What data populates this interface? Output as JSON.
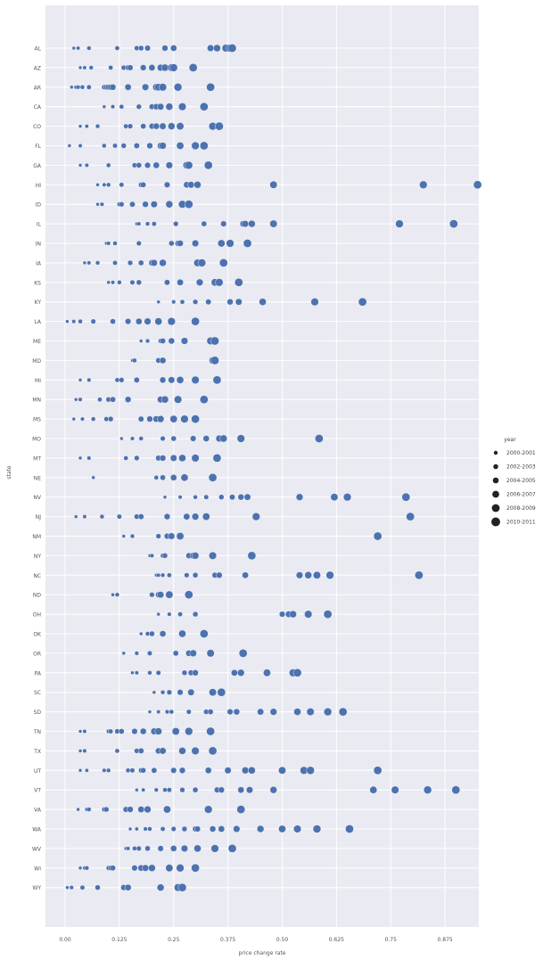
{
  "chart_data": {
    "type": "scatter",
    "title": "",
    "xlabel": "price change rate",
    "ylabel": "state",
    "xlim": [
      -0.1,
      0.95
    ],
    "x_ticks": [
      {
        "value": 0.0,
        "label": "0.00"
      },
      {
        "value": 0.125,
        "label": "0.125"
      },
      {
        "value": 0.25,
        "label": "0.25"
      },
      {
        "value": 0.375,
        "label": "0.375"
      },
      {
        "value": 0.5,
        "label": "0.50"
      },
      {
        "value": 0.625,
        "label": "0.625"
      },
      {
        "value": 0.75,
        "label": "0.75"
      },
      {
        "value": 0.875,
        "label": "0.875"
      }
    ],
    "grid": true,
    "marker_color": "#4c72b0",
    "background_color": "#eaeaf2",
    "legend": {
      "title": "year",
      "placement": "right",
      "entries": [
        "2000-2001",
        "2002-2003",
        "2004-2005",
        "2006-2007",
        "2008-2009",
        "2010-2011"
      ]
    },
    "categories": [
      "AL",
      "AZ",
      "AR",
      "CA",
      "CO",
      "FL",
      "GA",
      "HI",
      "ID",
      "IL",
      "IN",
      "IA",
      "KS",
      "KY",
      "LA",
      "ME",
      "MD",
      "MI",
      "MN",
      "MS",
      "MO",
      "MT",
      "NE",
      "NV",
      "NJ",
      "NM",
      "NY",
      "NC",
      "ND",
      "OH",
      "OK",
      "OR",
      "PA",
      "SC",
      "SD",
      "TN",
      "TX",
      "UT",
      "VT",
      "VA",
      "WA",
      "WV",
      "WI",
      "WY"
    ],
    "points": [
      {
        "state": "AL",
        "x": [
          0.02,
          0.03,
          0.055,
          0.12,
          0.165,
          0.175,
          0.19,
          0.23,
          0.25,
          0.335,
          0.35,
          0.37,
          0.38,
          0.385
        ]
      },
      {
        "state": "AZ",
        "x": [
          0.035,
          0.045,
          0.06,
          0.105,
          0.135,
          0.145,
          0.15,
          0.18,
          0.2,
          0.22,
          0.23,
          0.245,
          0.25,
          0.295
        ]
      },
      {
        "state": "AR",
        "x": [
          0.015,
          0.025,
          0.03,
          0.04,
          0.055,
          0.09,
          0.095,
          0.1,
          0.105,
          0.11,
          0.145,
          0.185,
          0.21,
          0.215,
          0.225,
          0.26,
          0.335
        ]
      },
      {
        "state": "CA",
        "x": [
          0.09,
          0.11,
          0.13,
          0.17,
          0.2,
          0.21,
          0.22,
          0.24,
          0.27,
          0.32
        ]
      },
      {
        "state": "CO",
        "x": [
          0.035,
          0.05,
          0.075,
          0.14,
          0.15,
          0.18,
          0.2,
          0.21,
          0.225,
          0.245,
          0.265,
          0.34,
          0.355
        ]
      },
      {
        "state": "FL",
        "x": [
          0.01,
          0.035,
          0.09,
          0.115,
          0.135,
          0.165,
          0.195,
          0.22,
          0.225,
          0.265,
          0.3,
          0.32
        ]
      },
      {
        "state": "GA",
        "x": [
          0.035,
          0.05,
          0.1,
          0.16,
          0.17,
          0.19,
          0.21,
          0.24,
          0.28,
          0.285,
          0.33
        ]
      },
      {
        "state": "HI",
        "x": [
          0.075,
          0.09,
          0.1,
          0.13,
          0.175,
          0.18,
          0.235,
          0.28,
          0.29,
          0.305,
          0.48,
          0.825,
          0.95
        ]
      },
      {
        "state": "ID",
        "x": [
          0.075,
          0.085,
          0.125,
          0.13,
          0.155,
          0.185,
          0.205,
          0.24,
          0.27,
          0.285
        ]
      },
      {
        "state": "IL",
        "x": [
          0.165,
          0.17,
          0.19,
          0.205,
          0.255,
          0.32,
          0.365,
          0.41,
          0.415,
          0.43,
          0.48,
          0.77,
          0.895
        ]
      },
      {
        "state": "IN",
        "x": [
          0.095,
          0.1,
          0.115,
          0.17,
          0.245,
          0.26,
          0.265,
          0.3,
          0.36,
          0.38,
          0.42
        ]
      },
      {
        "state": "IA",
        "x": [
          0.045,
          0.055,
          0.075,
          0.115,
          0.15,
          0.175,
          0.2,
          0.2,
          0.205,
          0.225,
          0.305,
          0.315,
          0.365
        ]
      },
      {
        "state": "KS",
        "x": [
          0.1,
          0.11,
          0.125,
          0.155,
          0.17,
          0.235,
          0.265,
          0.265,
          0.31,
          0.345,
          0.355,
          0.4
        ]
      },
      {
        "state": "KY",
        "x": [
          0.215,
          0.25,
          0.27,
          0.3,
          0.33,
          0.38,
          0.4,
          0.455,
          0.575,
          0.685
        ]
      },
      {
        "state": "LA",
        "x": [
          0.005,
          0.02,
          0.035,
          0.065,
          0.11,
          0.145,
          0.17,
          0.19,
          0.215,
          0.245,
          0.3
        ]
      },
      {
        "state": "ME",
        "x": [
          0.175,
          0.19,
          0.22,
          0.225,
          0.245,
          0.275,
          0.335,
          0.345
        ]
      },
      {
        "state": "MD",
        "x": [
          0.155,
          0.16,
          0.215,
          0.225,
          0.34,
          0.345
        ]
      },
      {
        "state": "MI",
        "x": [
          0.035,
          0.055,
          0.12,
          0.13,
          0.165,
          0.225,
          0.245,
          0.265,
          0.3,
          0.35
        ]
      },
      {
        "state": "MN",
        "x": [
          0.025,
          0.035,
          0.08,
          0.1,
          0.11,
          0.145,
          0.22,
          0.23,
          0.26,
          0.32
        ]
      },
      {
        "state": "MS",
        "x": [
          0.02,
          0.04,
          0.065,
          0.095,
          0.105,
          0.175,
          0.195,
          0.21,
          0.22,
          0.25,
          0.275,
          0.3
        ]
      },
      {
        "state": "MO",
        "x": [
          0.13,
          0.155,
          0.175,
          0.225,
          0.25,
          0.295,
          0.325,
          0.355,
          0.365,
          0.405,
          0.585
        ]
      },
      {
        "state": "MT",
        "x": [
          0.035,
          0.055,
          0.14,
          0.165,
          0.215,
          0.225,
          0.25,
          0.27,
          0.3,
          0.35
        ]
      },
      {
        "state": "NE",
        "x": [
          0.065,
          0.21,
          0.225,
          0.25,
          0.275,
          0.34
        ]
      },
      {
        "state": "NV",
        "x": [
          0.23,
          0.265,
          0.3,
          0.325,
          0.36,
          0.385,
          0.405,
          0.42,
          0.54,
          0.62,
          0.65,
          0.785
        ]
      },
      {
        "state": "NJ",
        "x": [
          0.025,
          0.045,
          0.085,
          0.125,
          0.165,
          0.175,
          0.235,
          0.28,
          0.3,
          0.325,
          0.44,
          0.795
        ]
      },
      {
        "state": "NM",
        "x": [
          0.135,
          0.155,
          0.215,
          0.235,
          0.245,
          0.265,
          0.72
        ]
      },
      {
        "state": "NY",
        "x": [
          0.195,
          0.2,
          0.225,
          0.23,
          0.285,
          0.295,
          0.3,
          0.34,
          0.43
        ]
      },
      {
        "state": "NC",
        "x": [
          0.21,
          0.215,
          0.225,
          0.24,
          0.28,
          0.3,
          0.345,
          0.355,
          0.415,
          0.54,
          0.56,
          0.58,
          0.61,
          0.815
        ]
      },
      {
        "state": "ND",
        "x": [
          0.11,
          0.12,
          0.2,
          0.215,
          0.22,
          0.24,
          0.285
        ]
      },
      {
        "state": "OH",
        "x": [
          0.215,
          0.24,
          0.265,
          0.3,
          0.5,
          0.515,
          0.525,
          0.56,
          0.605
        ]
      },
      {
        "state": "OK",
        "x": [
          0.175,
          0.19,
          0.2,
          0.225,
          0.27,
          0.32
        ]
      },
      {
        "state": "OR",
        "x": [
          0.135,
          0.165,
          0.195,
          0.255,
          0.285,
          0.295,
          0.335,
          0.41
        ]
      },
      {
        "state": "PA",
        "x": [
          0.155,
          0.165,
          0.195,
          0.215,
          0.275,
          0.29,
          0.3,
          0.39,
          0.405,
          0.465,
          0.525,
          0.535
        ]
      },
      {
        "state": "SC",
        "x": [
          0.205,
          0.225,
          0.24,
          0.265,
          0.29,
          0.34,
          0.36
        ]
      },
      {
        "state": "SD",
        "x": [
          0.195,
          0.215,
          0.235,
          0.245,
          0.285,
          0.325,
          0.335,
          0.38,
          0.395,
          0.45,
          0.48,
          0.535,
          0.565,
          0.605,
          0.64
        ]
      },
      {
        "state": "TN",
        "x": [
          0.035,
          0.045,
          0.1,
          0.105,
          0.12,
          0.13,
          0.16,
          0.18,
          0.205,
          0.215,
          0.255,
          0.285,
          0.335
        ]
      },
      {
        "state": "TX",
        "x": [
          0.035,
          0.045,
          0.12,
          0.165,
          0.175,
          0.215,
          0.225,
          0.27,
          0.3,
          0.34
        ]
      },
      {
        "state": "UT",
        "x": [
          0.035,
          0.05,
          0.09,
          0.1,
          0.145,
          0.155,
          0.175,
          0.18,
          0.205,
          0.25,
          0.27,
          0.33,
          0.375,
          0.415,
          0.43,
          0.5,
          0.55,
          0.565,
          0.72
        ]
      },
      {
        "state": "VT",
        "x": [
          0.165,
          0.18,
          0.21,
          0.23,
          0.24,
          0.27,
          0.3,
          0.35,
          0.36,
          0.405,
          0.425,
          0.48,
          0.71,
          0.76,
          0.835,
          0.9
        ]
      },
      {
        "state": "VA",
        "x": [
          0.03,
          0.05,
          0.055,
          0.09,
          0.095,
          0.14,
          0.15,
          0.175,
          0.19,
          0.235,
          0.33,
          0.405
        ]
      },
      {
        "state": "WA",
        "x": [
          0.15,
          0.165,
          0.185,
          0.195,
          0.225,
          0.25,
          0.275,
          0.3,
          0.305,
          0.34,
          0.36,
          0.395,
          0.45,
          0.5,
          0.535,
          0.58,
          0.655
        ]
      },
      {
        "state": "WV",
        "x": [
          0.14,
          0.145,
          0.16,
          0.17,
          0.19,
          0.22,
          0.25,
          0.275,
          0.305,
          0.345,
          0.385
        ]
      },
      {
        "state": "WI",
        "x": [
          0.035,
          0.045,
          0.05,
          0.1,
          0.105,
          0.11,
          0.16,
          0.175,
          0.185,
          0.2,
          0.24,
          0.265,
          0.3
        ]
      },
      {
        "state": "WY",
        "x": [
          0.005,
          0.015,
          0.04,
          0.075,
          0.135,
          0.145,
          0.22,
          0.26,
          0.27
        ]
      }
    ]
  }
}
